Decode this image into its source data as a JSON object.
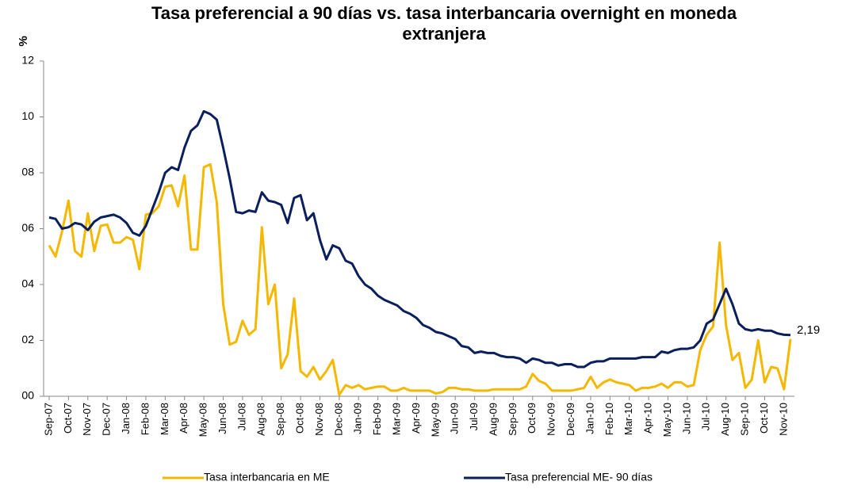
{
  "chart_data": {
    "type": "line",
    "title": "Tasa preferencial a 90 días vs. tasa interbancaria overnight en moneda extranjera",
    "y_label": "%",
    "categories": [
      "Sep-07",
      null,
      null,
      "Oct-07",
      null,
      null,
      "Nov-07",
      null,
      null,
      "Dec-07",
      null,
      null,
      "Jan-08",
      null,
      null,
      "Feb-08",
      null,
      null,
      "Mar-08",
      null,
      null,
      "Apr-08",
      null,
      null,
      "May-08",
      null,
      null,
      "Jun-08",
      null,
      null,
      "Jul-08",
      null,
      null,
      "Aug-08",
      null,
      null,
      "Sep-08",
      null,
      null,
      "Oct-08",
      null,
      null,
      "Nov-08",
      null,
      null,
      "Dec-08",
      null,
      null,
      "Jan-09",
      null,
      null,
      "Feb-09",
      null,
      null,
      "Mar-09",
      null,
      null,
      "Apr-09",
      null,
      null,
      "May-09",
      null,
      null,
      "Jun-09",
      null,
      null,
      "Jul-09",
      null,
      null,
      "Aug-09",
      null,
      null,
      "Sep-09",
      null,
      null,
      "Oct-09",
      null,
      null,
      "Nov-09",
      null,
      null,
      "Dec-09",
      null,
      null,
      "Jan-10",
      null,
      null,
      "Feb-10",
      null,
      null,
      "Mar-10",
      null,
      null,
      "Apr-10",
      null,
      null,
      "May-10",
      null,
      null,
      "Jun-10",
      null,
      null,
      "Jul-10",
      null,
      null,
      "Aug-10",
      null,
      null,
      "Sep-10",
      null,
      null,
      "Oct-10",
      null,
      null,
      "Nov-10",
      null
    ],
    "series": [
      {
        "name": "Tasa interbancaria en ME",
        "color": "#f5b800",
        "values": [
          5.4,
          5.0,
          5.9,
          7.0,
          5.2,
          5.0,
          6.55,
          5.2,
          6.1,
          6.15,
          5.5,
          5.5,
          5.7,
          5.6,
          4.55,
          6.5,
          6.55,
          6.8,
          7.5,
          7.55,
          6.8,
          7.9,
          5.25,
          5.25,
          8.2,
          8.3,
          6.95,
          3.3,
          1.85,
          1.95,
          2.7,
          2.2,
          2.4,
          6.05,
          3.3,
          4.0,
          1.0,
          1.5,
          3.5,
          0.9,
          0.7,
          1.05,
          0.6,
          0.9,
          1.3,
          0.05,
          0.4,
          0.3,
          0.4,
          0.25,
          0.3,
          0.35,
          0.35,
          0.2,
          0.2,
          0.3,
          0.2,
          0.2,
          0.2,
          0.2,
          0.1,
          0.15,
          0.3,
          0.3,
          0.25,
          0.25,
          0.2,
          0.2,
          0.2,
          0.25,
          0.25,
          0.25,
          0.25,
          0.25,
          0.35,
          0.8,
          0.55,
          0.45,
          0.2,
          0.2,
          0.2,
          0.2,
          0.25,
          0.3,
          0.7,
          0.3,
          0.5,
          0.6,
          0.5,
          0.45,
          0.4,
          0.2,
          0.3,
          0.3,
          0.35,
          0.45,
          0.3,
          0.5,
          0.5,
          0.35,
          0.4,
          1.65,
          2.2,
          2.5,
          5.5,
          2.55,
          1.3,
          1.55,
          0.3,
          0.6,
          2.0,
          0.5,
          1.05,
          1.0,
          0.25,
          2.05
        ]
      },
      {
        "name": "Tasa preferencial ME- 90 días",
        "color": "#0a1f5c",
        "values": [
          6.4,
          6.35,
          6.0,
          6.05,
          6.2,
          6.15,
          5.95,
          6.25,
          6.4,
          6.45,
          6.5,
          6.4,
          6.2,
          5.85,
          5.75,
          6.1,
          6.7,
          7.3,
          8.0,
          8.2,
          8.1,
          8.9,
          9.5,
          9.7,
          10.2,
          10.1,
          9.9,
          8.9,
          7.8,
          6.6,
          6.55,
          6.65,
          6.6,
          7.3,
          7.0,
          6.95,
          6.85,
          6.2,
          7.1,
          7.2,
          6.3,
          6.55,
          5.6,
          4.9,
          5.4,
          5.3,
          4.85,
          4.75,
          4.3,
          4.0,
          3.85,
          3.6,
          3.45,
          3.35,
          3.25,
          3.05,
          2.95,
          2.8,
          2.55,
          2.45,
          2.3,
          2.25,
          2.15,
          2.05,
          1.8,
          1.75,
          1.55,
          1.6,
          1.55,
          1.55,
          1.45,
          1.4,
          1.4,
          1.35,
          1.2,
          1.35,
          1.3,
          1.2,
          1.2,
          1.1,
          1.15,
          1.15,
          1.05,
          1.05,
          1.2,
          1.25,
          1.25,
          1.35,
          1.35,
          1.35,
          1.35,
          1.35,
          1.4,
          1.4,
          1.4,
          1.6,
          1.55,
          1.65,
          1.7,
          1.7,
          1.75,
          2.0,
          2.6,
          2.75,
          3.3,
          3.85,
          3.3,
          2.6,
          2.4,
          2.35,
          2.4,
          2.35,
          2.35,
          2.25,
          2.2,
          2.19
        ],
        "value_labels": [
          null,
          null,
          null,
          null,
          null,
          null,
          null,
          null,
          null,
          null,
          null,
          null,
          null,
          null,
          null,
          null,
          null,
          null,
          null,
          null,
          null,
          null,
          null,
          null,
          null,
          null,
          null,
          null,
          null,
          null,
          null,
          null,
          null,
          null,
          null,
          null,
          null,
          null,
          null,
          null,
          null,
          null,
          null,
          null,
          null,
          null,
          null,
          null,
          null,
          null,
          null,
          null,
          null,
          null,
          null,
          null,
          null,
          null,
          null,
          null,
          null,
          null,
          null,
          null,
          null,
          null,
          null,
          null,
          null,
          null,
          null,
          null,
          null,
          null,
          null,
          null,
          null,
          null,
          null,
          null,
          null,
          null,
          null,
          null,
          null,
          null,
          null,
          null,
          null,
          null,
          null,
          null,
          null,
          null,
          null,
          null,
          null,
          null,
          null,
          null,
          null,
          null,
          null,
          null,
          null,
          null,
          null,
          null,
          null,
          null,
          null,
          null,
          null,
          null,
          null,
          "2,19"
        ]
      }
    ],
    "ylim": [
      0,
      12
    ],
    "yticks": [
      {
        "value": 0,
        "label": "00"
      },
      {
        "value": 2,
        "label": "02"
      },
      {
        "value": 4,
        "label": "04"
      },
      {
        "value": 6,
        "label": "06"
      },
      {
        "value": 8,
        "label": "08"
      },
      10,
      12
    ],
    "grid": false,
    "legend": "bottom"
  }
}
